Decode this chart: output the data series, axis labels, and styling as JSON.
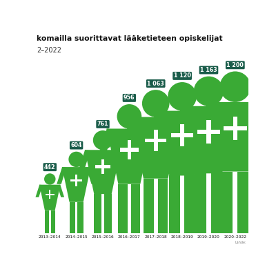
{
  "title_line1": "komailla suorittavat lääketieteen opiskelijat",
  "subtitle": "2–2022",
  "categories": [
    "2013–2014",
    "2014–2015",
    "2015–2016",
    "2016–2017",
    "2017–2018",
    "2018–2019",
    "2019–2020",
    "2020–2022"
  ],
  "values": [
    442,
    604,
    761,
    956,
    1063,
    1120,
    1163,
    1200
  ],
  "labels": [
    "442",
    "604",
    "761",
    "956",
    "1 063",
    "1 120",
    "1 163",
    "1 200"
  ],
  "figure_bg": "#ffffff",
  "figure_width": 4.0,
  "figure_height": 4.0,
  "figure_dpi": 100,
  "person_color": "#3aaa35",
  "label_bg": "#1a5c4a",
  "label_text": "#ffffff",
  "title_color": "#111111",
  "subtitle_color": "#333333",
  "source_text": "Lähde:"
}
